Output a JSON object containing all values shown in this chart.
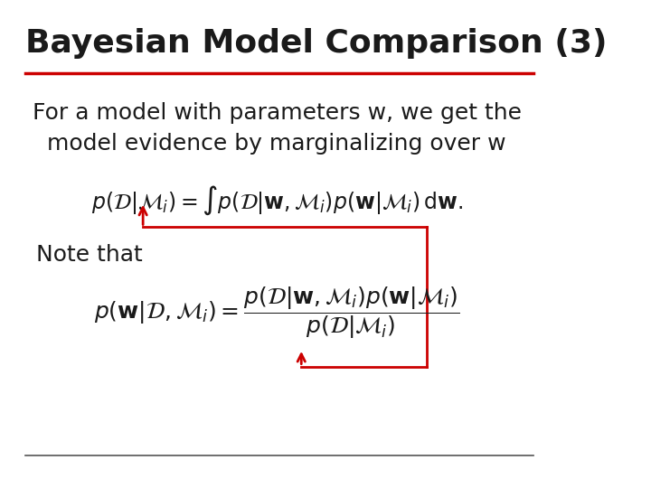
{
  "title": "Bayesian Model Comparison (3)",
  "title_fontsize": 26,
  "title_color": "#1a1a1a",
  "title_line_color": "#cc0000",
  "bg_color": "#ffffff",
  "text_color": "#1a1a1a",
  "red_color": "#cc0000",
  "body_text": "For a model with parameters w, we get the\nmodel evidence by marginalizing over w",
  "body_fontsize": 18,
  "note_text": "Note that",
  "note_fontsize": 18,
  "eq2_fontsize": 17,
  "bottom_line_color": "#555555",
  "arrow_color": "#cc0000",
  "box_color": "#cc0000"
}
